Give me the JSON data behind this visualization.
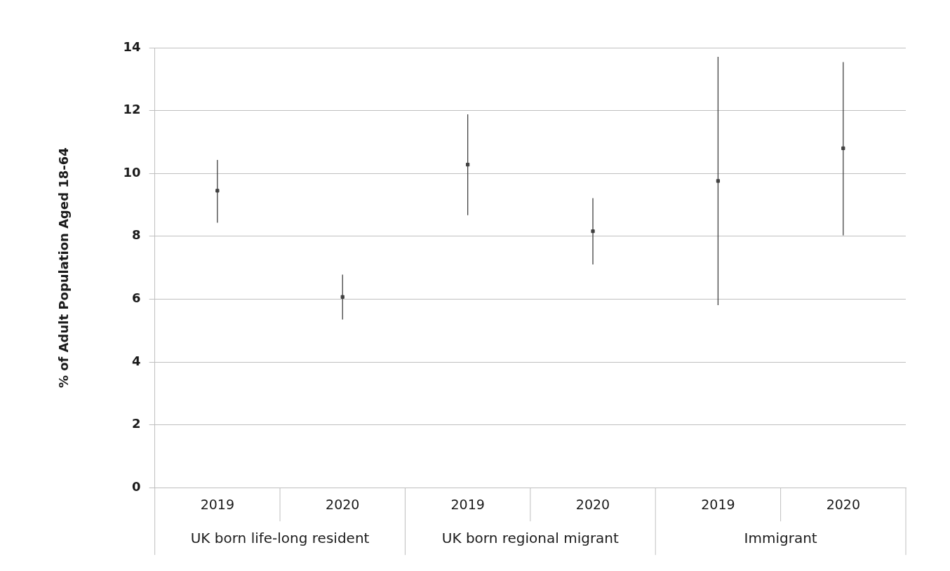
{
  "chart_data": {
    "type": "scatter",
    "ylabel": "% of Adult Population Aged 18-64",
    "categories": [
      "2019",
      "2020",
      "2019",
      "2020",
      "2019",
      "2020"
    ],
    "values": [
      9.45,
      6.07,
      10.28,
      8.16,
      9.76,
      10.8
    ],
    "errors": [
      [
        8.43,
        10.43
      ],
      [
        5.35,
        6.78
      ],
      [
        8.67,
        11.88
      ],
      [
        7.1,
        9.21
      ],
      [
        5.81,
        13.71
      ],
      [
        8.03,
        13.54
      ]
    ],
    "color": "#404040",
    "marker": "square",
    "annotations": [
      "UK born life-long resident",
      "UK born regional migrant",
      "Immigrant"
    ],
    "ylim": [
      0,
      14
    ],
    "yticks": [
      0,
      2,
      4,
      6,
      8,
      10,
      12,
      14
    ],
    "grid": "y"
  }
}
